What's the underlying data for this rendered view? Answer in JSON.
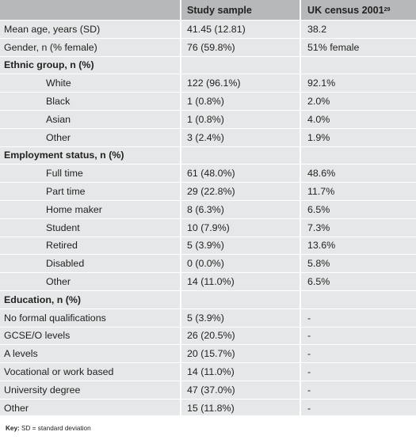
{
  "header": {
    "col1": "",
    "col2": "Study sample",
    "col3": "UK census 2001",
    "col3_sup": "29"
  },
  "rows": [
    {
      "label": "Mean age, years (SD)",
      "sample": "41.45 (12.81)",
      "census": "38.2",
      "type": "plain"
    },
    {
      "label": "Gender, n (% female)",
      "sample": "76 (59.8%)",
      "census": "51% female",
      "type": "plain"
    },
    {
      "label": "Ethnic group, n (%)",
      "sample": "",
      "census": "",
      "type": "section"
    },
    {
      "label": "White",
      "sample": "122 (96.1%)",
      "census": "92.1%",
      "type": "indent"
    },
    {
      "label": "Black",
      "sample": "1 (0.8%)",
      "census": "2.0%",
      "type": "indent"
    },
    {
      "label": "Asian",
      "sample": "1 (0.8%)",
      "census": "4.0%",
      "type": "indent"
    },
    {
      "label": "Other",
      "sample": "3 (2.4%)",
      "census": "1.9%",
      "type": "indent"
    },
    {
      "label": "Employment status, n (%)",
      "sample": "",
      "census": "",
      "type": "section"
    },
    {
      "label": "Full time",
      "sample": "61 (48.0%)",
      "census": "48.6%",
      "type": "indent"
    },
    {
      "label": "Part time",
      "sample": "29 (22.8%)",
      "census": "11.7%",
      "type": "indent"
    },
    {
      "label": "Home maker",
      "sample": "8 (6.3%)",
      "census": "6.5%",
      "type": "indent"
    },
    {
      "label": "Student",
      "sample": "10 (7.9%)",
      "census": "7.3%",
      "type": "indent"
    },
    {
      "label": "Retired",
      "sample": "5 (3.9%)",
      "census": "13.6%",
      "type": "indent"
    },
    {
      "label": "Disabled",
      "sample": "0 (0.0%)",
      "census": "5.8%",
      "type": "indent"
    },
    {
      "label": "Other",
      "sample": "14 (11.0%)",
      "census": "6.5%",
      "type": "indent"
    },
    {
      "label": "Education, n (%)",
      "sample": "",
      "census": "",
      "type": "section"
    },
    {
      "label": "No formal qualifications",
      "sample": "5 (3.9%)",
      "census": "-",
      "type": "plain"
    },
    {
      "label": "GCSE/O levels",
      "sample": "26 (20.5%)",
      "census": "-",
      "type": "plain"
    },
    {
      "label": "A levels",
      "sample": "20 (15.7%)",
      "census": "-",
      "type": "plain"
    },
    {
      "label": "Vocational or work based",
      "sample": "14 (11.0%)",
      "census": "-",
      "type": "plain"
    },
    {
      "label": "University degree",
      "sample": "47 (37.0%)",
      "census": "-",
      "type": "plain"
    },
    {
      "label": "Other",
      "sample": "15 (11.8%)",
      "census": "-",
      "type": "plain"
    }
  ],
  "key": {
    "label": "Key:",
    "text": "SD = standard deviation"
  }
}
